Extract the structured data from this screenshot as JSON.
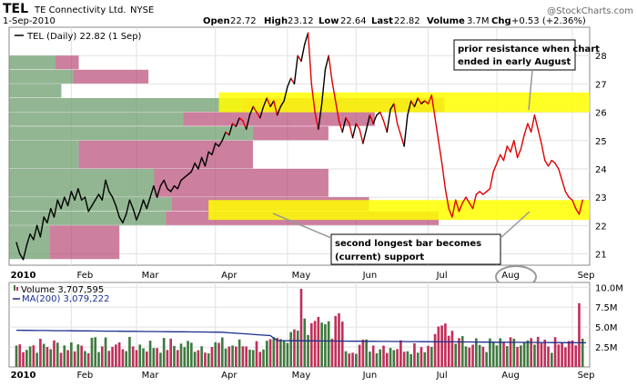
{
  "header": {
    "ticker": "TEL",
    "company": "TE Connectivity Ltd.",
    "exchange": "NYSE",
    "date": "1-Sep-2010",
    "open_label": "Open",
    "open": "22.72",
    "high_label": "High",
    "high": "23.12",
    "low_label": "Low",
    "low": "22.64",
    "last_label": "Last",
    "last": "22.82",
    "volume_label": "Volume",
    "volume": "3.7M",
    "chg_label": "Chg",
    "chg": "+0.53 (+2.36%)",
    "watermark": "@StockCharts.com"
  },
  "legend": {
    "price": "TEL (Daily) 22.82 (1 Sep)",
    "volume": "Volume 3,707,595",
    "ma": "MA(200) 3,079,222"
  },
  "annotations": {
    "resistance_line1": "prior resistance when chart",
    "resistance_line2": "ended in early August",
    "support_line1": "second longest bar becomes",
    "support_line2": "(current) support"
  },
  "chart_data": {
    "type": "line",
    "price_axis": {
      "ylim": [
        20.6,
        29.0
      ],
      "ticks": [
        21,
        22,
        23,
        24,
        25,
        26,
        27,
        28
      ]
    },
    "volume_axis": {
      "ylim": [
        0,
        10.6
      ],
      "ticks": [
        2.5,
        5.0,
        7.5,
        10.0
      ],
      "tick_labels": [
        "2.5M",
        "5.0M",
        "7.5M",
        "10.0M"
      ]
    },
    "x_axis": {
      "labels": [
        {
          "text": "2010",
          "day": 2,
          "bold": true
        },
        {
          "text": "Feb",
          "day": 20
        },
        {
          "text": "Mar",
          "day": 39
        },
        {
          "text": "Apr",
          "day": 62
        },
        {
          "text": "May",
          "day": 83
        },
        {
          "text": "Jun",
          "day": 103
        },
        {
          "text": "Jul",
          "day": 124
        },
        {
          "text": "Aug",
          "day": 144
        },
        {
          "text": "Sep",
          "day": 166
        }
      ],
      "gridlines": [
        16,
        35,
        58,
        79,
        99,
        120,
        140,
        162
      ],
      "total_days": 166
    },
    "price": [
      [
        0,
        21.4
      ],
      [
        1,
        21.0
      ],
      [
        2,
        20.8
      ],
      [
        3,
        21.3
      ],
      [
        4,
        21.7
      ],
      [
        5,
        21.5
      ],
      [
        6,
        22.0
      ],
      [
        7,
        21.6
      ],
      [
        8,
        22.3
      ],
      [
        9,
        22.1
      ],
      [
        10,
        22.6
      ],
      [
        11,
        22.3
      ],
      [
        12,
        22.9
      ],
      [
        13,
        22.6
      ],
      [
        14,
        23.0
      ],
      [
        15,
        22.7
      ],
      [
        16,
        23.2
      ],
      [
        17,
        22.9
      ],
      [
        18,
        23.3
      ],
      [
        19,
        22.9
      ],
      [
        20,
        23.0
      ],
      [
        21,
        22.5
      ],
      [
        22,
        22.7
      ],
      [
        23,
        22.9
      ],
      [
        24,
        23.1
      ],
      [
        25,
        22.9
      ],
      [
        26,
        23.6
      ],
      [
        27,
        23.2
      ],
      [
        28,
        23.0
      ],
      [
        29,
        22.7
      ],
      [
        30,
        22.3
      ],
      [
        31,
        22.1
      ],
      [
        32,
        22.4
      ],
      [
        33,
        22.9
      ],
      [
        34,
        22.6
      ],
      [
        35,
        22.2
      ],
      [
        36,
        22.5
      ],
      [
        37,
        22.9
      ],
      [
        38,
        22.6
      ],
      [
        39,
        23.0
      ],
      [
        40,
        23.4
      ],
      [
        41,
        23.0
      ],
      [
        42,
        23.4
      ],
      [
        43,
        23.6
      ],
      [
        44,
        23.3
      ],
      [
        45,
        23.2
      ],
      [
        46,
        23.4
      ],
      [
        47,
        23.3
      ],
      [
        48,
        23.6
      ],
      [
        49,
        23.7
      ],
      [
        50,
        23.8
      ],
      [
        51,
        23.9
      ],
      [
        52,
        24.2
      ],
      [
        53,
        24.0
      ],
      [
        54,
        24.4
      ],
      [
        55,
        24.1
      ],
      [
        56,
        24.6
      ],
      [
        57,
        24.5
      ],
      [
        58,
        24.9
      ],
      [
        59,
        24.8
      ],
      [
        60,
        25.0
      ],
      [
        61,
        25.3
      ],
      [
        62,
        25.2
      ],
      [
        63,
        25.6
      ],
      [
        64,
        25.5
      ],
      [
        65,
        25.8
      ],
      [
        66,
        25.7
      ],
      [
        67,
        25.4
      ],
      [
        68,
        25.9
      ],
      [
        69,
        26.2
      ],
      [
        70,
        26.0
      ],
      [
        71,
        25.8
      ],
      [
        72,
        26.2
      ],
      [
        73,
        26.5
      ],
      [
        74,
        26.2
      ],
      [
        75,
        26.4
      ],
      [
        76,
        25.9
      ],
      [
        77,
        26.2
      ],
      [
        78,
        26.4
      ],
      [
        79,
        26.9
      ],
      [
        80,
        27.2
      ],
      [
        81,
        27.0
      ],
      [
        82,
        28.0
      ],
      [
        83,
        27.8
      ],
      [
        84,
        28.4
      ],
      [
        85,
        28.8
      ],
      [
        86,
        27.0
      ],
      [
        87,
        26.0
      ],
      [
        88,
        25.4
      ],
      [
        89,
        26.3
      ],
      [
        90,
        27.5
      ],
      [
        91,
        28.0
      ],
      [
        92,
        27.1
      ],
      [
        93,
        26.4
      ],
      [
        94,
        25.7
      ],
      [
        95,
        25.3
      ],
      [
        96,
        25.8
      ],
      [
        97,
        25.6
      ],
      [
        98,
        25.1
      ],
      [
        99,
        25.6
      ],
      [
        100,
        25.4
      ],
      [
        101,
        24.9
      ],
      [
        102,
        25.4
      ],
      [
        103,
        25.9
      ],
      [
        104,
        25.6
      ],
      [
        105,
        25.9
      ],
      [
        106,
        26.0
      ],
      [
        107,
        25.7
      ],
      [
        108,
        25.3
      ],
      [
        109,
        26.1
      ],
      [
        110,
        26.3
      ],
      [
        111,
        25.6
      ],
      [
        112,
        25.2
      ],
      [
        113,
        24.8
      ],
      [
        114,
        25.9
      ],
      [
        115,
        26.4
      ],
      [
        116,
        26.2
      ],
      [
        117,
        26.5
      ],
      [
        118,
        26.3
      ],
      [
        119,
        26.4
      ],
      [
        120,
        26.3
      ],
      [
        121,
        26.6
      ],
      [
        122,
        25.8
      ],
      [
        123,
        25.0
      ],
      [
        124,
        24.2
      ],
      [
        125,
        23.3
      ],
      [
        126,
        22.6
      ],
      [
        127,
        22.3
      ],
      [
        128,
        22.9
      ],
      [
        129,
        22.5
      ],
      [
        130,
        22.8
      ],
      [
        131,
        23.0
      ],
      [
        132,
        22.8
      ],
      [
        133,
        22.6
      ],
      [
        134,
        23.1
      ],
      [
        135,
        23.2
      ],
      [
        136,
        23.1
      ],
      [
        137,
        23.2
      ],
      [
        138,
        23.3
      ],
      [
        139,
        23.9
      ],
      [
        140,
        24.2
      ],
      [
        141,
        24.5
      ],
      [
        142,
        24.3
      ],
      [
        143,
        24.8
      ],
      [
        144,
        24.6
      ],
      [
        145,
        25.0
      ],
      [
        146,
        24.4
      ],
      [
        147,
        24.7
      ],
      [
        148,
        25.2
      ],
      [
        149,
        25.6
      ],
      [
        150,
        25.3
      ],
      [
        151,
        25.9
      ],
      [
        152,
        25.4
      ],
      [
        153,
        24.9
      ],
      [
        154,
        24.3
      ],
      [
        155,
        24.1
      ],
      [
        156,
        24.3
      ],
      [
        157,
        24.2
      ],
      [
        158,
        24.0
      ],
      [
        159,
        23.6
      ],
      [
        160,
        23.2
      ],
      [
        161,
        23.0
      ],
      [
        162,
        22.9
      ],
      [
        163,
        22.6
      ],
      [
        164,
        22.4
      ],
      [
        165,
        22.9
      ]
    ],
    "volume_by_price": [
      {
        "low": 27.5,
        "high": 28.0,
        "up": 0.08,
        "down": 0.04
      },
      {
        "low": 27.0,
        "high": 27.5,
        "up": 0.11,
        "down": 0.13
      },
      {
        "low": 26.5,
        "high": 27.0,
        "up": 0.09,
        "down": 0.0
      },
      {
        "low": 26.0,
        "high": 26.5,
        "up": 0.4,
        "down": 0.35
      },
      {
        "low": 25.5,
        "high": 26.0,
        "up": 0.3,
        "down": 0.33
      },
      {
        "low": 25.0,
        "high": 25.5,
        "up": 0.42,
        "down": 0.13
      },
      {
        "low": 24.0,
        "high": 25.0,
        "up": 0.12,
        "down": 0.3
      },
      {
        "low": 23.0,
        "high": 24.0,
        "up": 0.25,
        "down": 0.3
      },
      {
        "low": 22.5,
        "high": 23.0,
        "up": 0.28,
        "down": 0.34
      },
      {
        "low": 22.0,
        "high": 22.5,
        "up": 0.27,
        "down": 0.47
      },
      {
        "low": 20.8,
        "high": 22.0,
        "up": 0.07,
        "down": 0.12
      }
    ],
    "highlight_zones": [
      {
        "low": 26.0,
        "high": 26.7,
        "from_day": 59
      },
      {
        "low": 22.2,
        "high": 22.9,
        "from_day": 56
      }
    ],
    "volume_colors": {
      "up": "#3f7a3f",
      "down": "#c0305a",
      "ma": "#1a2e8c"
    }
  }
}
